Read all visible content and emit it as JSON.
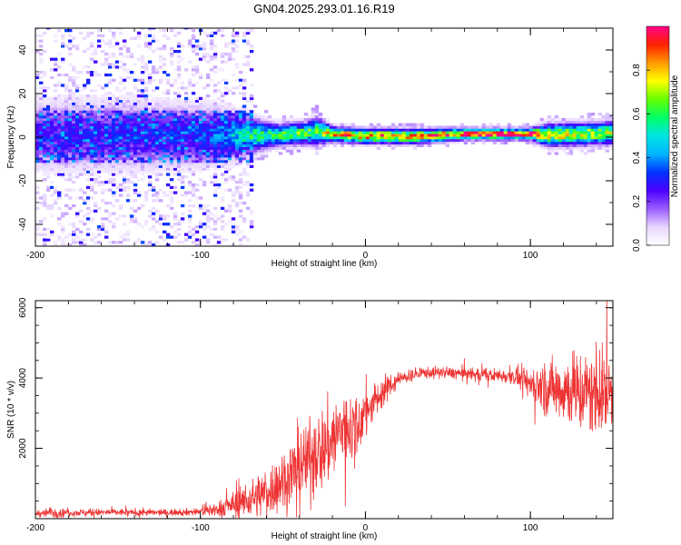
{
  "chart_data": [
    {
      "type": "heatmap",
      "title": "GN04.2025.293.01.16.R19",
      "xlabel": "Height of straight line (km)",
      "ylabel": "Frequency (Hz)",
      "xlim": [
        -200,
        150
      ],
      "ylim": [
        -50,
        50
      ],
      "xticks": [
        "-200",
        "-100",
        "0",
        "100"
      ],
      "yticks": [
        "-40",
        "-20",
        "0",
        "20",
        "40"
      ],
      "colorbar": {
        "label": "Normalized spectral amplitude",
        "range": [
          0,
          1
        ],
        "ticks": [
          "0.0",
          "0.2",
          "0.4",
          "0.6",
          "0.8"
        ],
        "colormap": [
          "#ffffff",
          "#e8d6ff",
          "#9a5cff",
          "#4b00ff",
          "#0033ff",
          "#00b4ff",
          "#00e5e5",
          "#00ff66",
          "#66ff00",
          "#ffff00",
          "#ff9900",
          "#ff2200",
          "#ff0088"
        ]
      },
      "ridge": [
        {
          "x": -200,
          "center": 1,
          "halfwidth": 9,
          "peak": 0.25
        },
        {
          "x": -150,
          "center": 1,
          "halfwidth": 9,
          "peak": 0.27
        },
        {
          "x": -100,
          "center": 1,
          "halfwidth": 8,
          "peak": 0.3
        },
        {
          "x": -85,
          "center": 1,
          "halfwidth": 7,
          "peak": 0.38
        },
        {
          "x": -70,
          "center": 1,
          "halfwidth": 5,
          "peak": 0.55
        },
        {
          "x": -55,
          "center": 1,
          "halfwidth": 3,
          "peak": 0.6
        },
        {
          "x": -35,
          "center": 2,
          "halfwidth": 3,
          "peak": 0.62
        },
        {
          "x": -30,
          "center": 3,
          "halfwidth": 4,
          "peak": 0.55
        },
        {
          "x": -20,
          "center": 1.5,
          "halfwidth": 2,
          "peak": 0.8
        },
        {
          "x": 0,
          "center": 0.5,
          "halfwidth": 2,
          "peak": 0.85
        },
        {
          "x": 30,
          "center": 0.5,
          "halfwidth": 2,
          "peak": 0.8
        },
        {
          "x": 60,
          "center": 1.5,
          "halfwidth": 1.5,
          "peak": 0.95
        },
        {
          "x": 100,
          "center": 1.5,
          "halfwidth": 1.5,
          "peak": 0.95
        },
        {
          "x": 110,
          "center": 1,
          "halfwidth": 3,
          "peak": 0.75
        },
        {
          "x": 130,
          "center": 1.5,
          "halfwidth": 3,
          "peak": 0.7
        },
        {
          "x": 150,
          "center": 2,
          "halfwidth": 3,
          "peak": 0.7
        }
      ]
    },
    {
      "type": "line",
      "xlabel": "Height of straight line (km)",
      "ylabel": "SNR (10 * v/v)",
      "xlim": [
        -200,
        150
      ],
      "ylim": [
        0,
        6200
      ],
      "xticks": [
        "-200",
        "-100",
        "0",
        "100"
      ],
      "yticks": [
        "2000",
        "4000",
        "6000"
      ],
      "color": "#ee3333",
      "envelope": {
        "x": [
          -200,
          -190,
          -180,
          -150,
          -120,
          -100,
          -90,
          -75,
          -65,
          -55,
          -45,
          -35,
          -25,
          -15,
          -5,
          5,
          15,
          25,
          35,
          50,
          70,
          90,
          100,
          110,
          120,
          130,
          140,
          150
        ],
        "mean": [
          150,
          180,
          170,
          180,
          170,
          200,
          280,
          450,
          650,
          900,
          1300,
          1700,
          2000,
          2500,
          2700,
          3300,
          3800,
          4050,
          4150,
          4150,
          4100,
          4050,
          3850,
          3700,
          3700,
          3600,
          3550,
          3600
        ],
        "spread": [
          80,
          150,
          90,
          90,
          80,
          100,
          180,
          350,
          550,
          700,
          900,
          1000,
          1100,
          1100,
          800,
          500,
          300,
          180,
          150,
          150,
          150,
          200,
          450,
          700,
          900,
          1100,
          1050,
          1000
        ]
      }
    }
  ]
}
